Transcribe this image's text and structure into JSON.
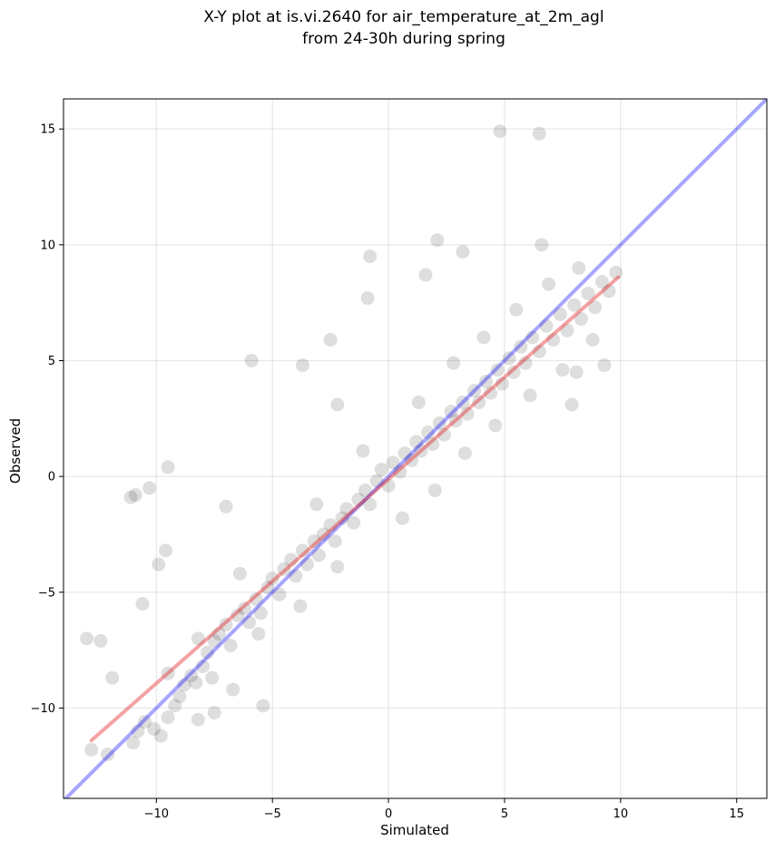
{
  "chart_data": {
    "type": "scatter",
    "title_lines": [
      "X-Y plot at is.vi.2640 for air_temperature_at_2m_agl",
      "from 24-30h during spring"
    ],
    "xlabel": "Simulated",
    "ylabel": "Observed",
    "xlim": [
      -14.0,
      16.3
    ],
    "ylim": [
      -13.9,
      16.3
    ],
    "xticks": [
      -10,
      -5,
      0,
      5,
      10,
      15
    ],
    "yticks": [
      -10,
      -5,
      0,
      5,
      10,
      15
    ],
    "tick_labels": {
      "x": [
        "−10",
        "−5",
        "0",
        "5",
        "10",
        "15"
      ],
      "y": [
        "−10",
        "−5",
        "0",
        "5",
        "10",
        "15"
      ]
    },
    "grid": true,
    "colors": {
      "points": "#000000",
      "identity_line": "#0000ff",
      "fit_line": "#e31a1c"
    },
    "series": [
      {
        "role": "observations",
        "points": [
          [
            -12.8,
            -11.8
          ],
          [
            -12.1,
            -12.0
          ],
          [
            -11.0,
            -11.5
          ],
          [
            -10.8,
            -11.0
          ],
          [
            -10.5,
            -10.6
          ],
          [
            -10.1,
            -10.9
          ],
          [
            -9.8,
            -11.2
          ],
          [
            -9.5,
            -10.4
          ],
          [
            -9.2,
            -9.9
          ],
          [
            -9.0,
            -9.5
          ],
          [
            -8.8,
            -9.0
          ],
          [
            -8.5,
            -8.6
          ],
          [
            -8.3,
            -8.9
          ],
          [
            -8.0,
            -8.2
          ],
          [
            -7.8,
            -7.6
          ],
          [
            -7.5,
            -7.1
          ],
          [
            -7.3,
            -6.8
          ],
          [
            -7.0,
            -6.4
          ],
          [
            -6.8,
            -7.3
          ],
          [
            -6.5,
            -6.0
          ],
          [
            -6.2,
            -5.7
          ],
          [
            -6.0,
            -6.3
          ],
          [
            -5.7,
            -5.3
          ],
          [
            -5.5,
            -5.9
          ],
          [
            -5.2,
            -4.8
          ],
          [
            -5.0,
            -4.4
          ],
          [
            -4.7,
            -5.1
          ],
          [
            -4.5,
            -4.0
          ],
          [
            -4.2,
            -3.6
          ],
          [
            -4.0,
            -4.3
          ],
          [
            -3.7,
            -3.2
          ],
          [
            -3.5,
            -3.8
          ],
          [
            -3.2,
            -2.8
          ],
          [
            -3.0,
            -3.4
          ],
          [
            -2.8,
            -2.5
          ],
          [
            -2.5,
            -2.1
          ],
          [
            -2.3,
            -2.8
          ],
          [
            -2.0,
            -1.8
          ],
          [
            -1.8,
            -1.4
          ],
          [
            -1.5,
            -2.0
          ],
          [
            -1.3,
            -1.0
          ],
          [
            -1.0,
            -0.6
          ],
          [
            -0.8,
            -1.2
          ],
          [
            -0.5,
            -0.2
          ],
          [
            -0.3,
            0.3
          ],
          [
            0.0,
            -0.4
          ],
          [
            0.2,
            0.6
          ],
          [
            0.5,
            0.2
          ],
          [
            0.7,
            1.0
          ],
          [
            1.0,
            0.7
          ],
          [
            1.2,
            1.5
          ],
          [
            1.4,
            1.1
          ],
          [
            1.7,
            1.9
          ],
          [
            1.9,
            1.4
          ],
          [
            2.2,
            2.3
          ],
          [
            2.4,
            1.8
          ],
          [
            2.7,
            2.8
          ],
          [
            2.9,
            2.4
          ],
          [
            3.2,
            3.2
          ],
          [
            3.4,
            2.7
          ],
          [
            3.7,
            3.7
          ],
          [
            3.9,
            3.2
          ],
          [
            4.2,
            4.1
          ],
          [
            4.4,
            3.6
          ],
          [
            4.7,
            4.6
          ],
          [
            4.9,
            4.0
          ],
          [
            5.2,
            5.1
          ],
          [
            5.4,
            4.5
          ],
          [
            5.7,
            5.6
          ],
          [
            5.9,
            4.9
          ],
          [
            6.2,
            6.0
          ],
          [
            6.5,
            5.4
          ],
          [
            6.8,
            6.5
          ],
          [
            7.1,
            5.9
          ],
          [
            7.4,
            7.0
          ],
          [
            7.7,
            6.3
          ],
          [
            8.0,
            7.4
          ],
          [
            8.3,
            6.8
          ],
          [
            8.6,
            7.9
          ],
          [
            8.9,
            7.3
          ],
          [
            9.2,
            8.4
          ],
          [
            9.5,
            8.0
          ],
          [
            9.8,
            8.8
          ],
          [
            -9.5,
            -8.5
          ],
          [
            -8.2,
            -7.0
          ],
          [
            -7.6,
            -8.7
          ],
          [
            -6.4,
            -4.2
          ],
          [
            -5.6,
            -6.8
          ],
          [
            -3.8,
            -5.6
          ],
          [
            -3.1,
            -1.2
          ],
          [
            -2.2,
            -3.9
          ],
          [
            -1.1,
            1.1
          ],
          [
            0.6,
            -1.8
          ],
          [
            1.3,
            3.2
          ],
          [
            2.0,
            -0.6
          ],
          [
            2.8,
            4.9
          ],
          [
            3.3,
            1.0
          ],
          [
            4.1,
            6.0
          ],
          [
            4.6,
            2.2
          ],
          [
            5.5,
            7.2
          ],
          [
            6.1,
            3.5
          ],
          [
            6.9,
            8.3
          ],
          [
            7.5,
            4.6
          ],
          [
            8.2,
            9.0
          ],
          [
            8.8,
            5.9
          ],
          [
            -13.0,
            -7.0
          ],
          [
            -11.1,
            -0.9
          ],
          [
            -10.9,
            -0.8
          ],
          [
            -10.3,
            -0.5
          ],
          [
            -9.9,
            -3.8
          ],
          [
            -9.6,
            -3.2
          ],
          [
            -9.5,
            0.4
          ],
          [
            -10.6,
            -5.5
          ],
          [
            -7.0,
            -1.3
          ],
          [
            -5.9,
            5.0
          ],
          [
            -3.7,
            4.8
          ],
          [
            -2.5,
            5.9
          ],
          [
            -0.9,
            7.7
          ],
          [
            -0.8,
            9.5
          ],
          [
            2.1,
            10.2
          ],
          [
            1.6,
            8.7
          ],
          [
            3.2,
            9.7
          ],
          [
            4.8,
            14.9
          ],
          [
            6.5,
            14.8
          ],
          [
            6.6,
            10.0
          ],
          [
            -5.4,
            -9.9
          ],
          [
            -6.7,
            -9.2
          ],
          [
            -7.5,
            -10.2
          ],
          [
            -8.2,
            -10.5
          ],
          [
            -11.9,
            -8.7
          ],
          [
            -12.4,
            -7.1
          ],
          [
            7.9,
            3.1
          ],
          [
            9.3,
            4.8
          ],
          [
            8.1,
            4.5
          ],
          [
            -2.2,
            3.1
          ]
        ]
      },
      {
        "role": "identity",
        "points": [
          [
            -14.0,
            -14.0
          ],
          [
            16.3,
            16.3
          ]
        ]
      },
      {
        "role": "fit",
        "points": [
          [
            -12.8,
            -11.4
          ],
          [
            9.9,
            8.6
          ]
        ]
      }
    ]
  }
}
